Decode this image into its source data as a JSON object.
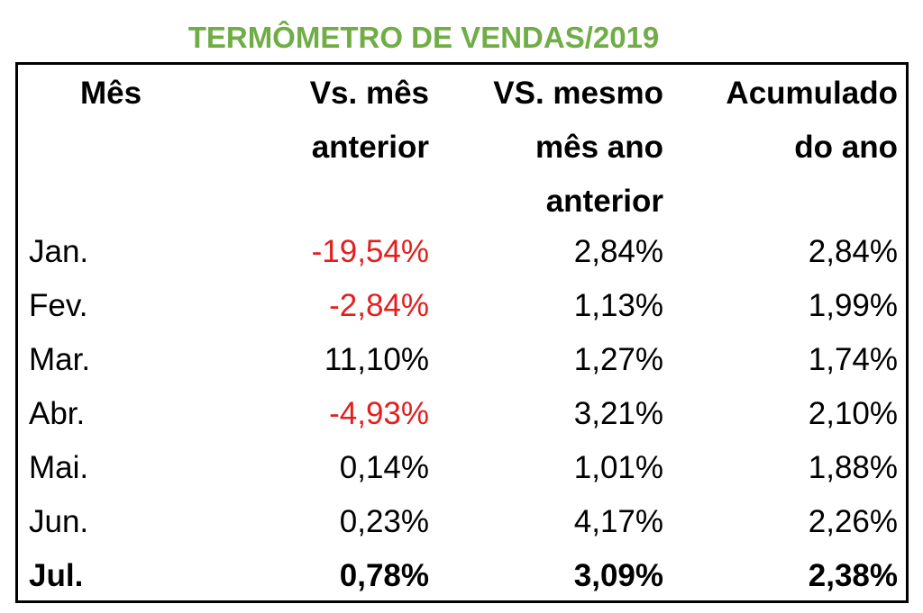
{
  "chart_data": {
    "type": "table",
    "title": "TERMÔMETRO DE VENDAS/2019",
    "columns": [
      [
        "Mês"
      ],
      [
        "Vs. mês",
        "anterior"
      ],
      [
        "VS. mesmo",
        "mês ano",
        "anterior"
      ],
      [
        "Acumulado",
        "do ano"
      ]
    ],
    "rows": [
      {
        "month": "Jan.",
        "vs_prev": "-19,54%",
        "vs_last_year": "2,84%",
        "ytd": "2,84%",
        "prev_negative": true,
        "bold": false
      },
      {
        "month": "Fev.",
        "vs_prev": "-2,84%",
        "vs_last_year": "1,13%",
        "ytd": "1,99%",
        "prev_negative": true,
        "bold": false
      },
      {
        "month": "Mar.",
        "vs_prev": "11,10%",
        "vs_last_year": "1,27%",
        "ytd": "1,74%",
        "prev_negative": false,
        "bold": false
      },
      {
        "month": "Abr.",
        "vs_prev": "-4,93%",
        "vs_last_year": "3,21%",
        "ytd": "2,10%",
        "prev_negative": true,
        "bold": false
      },
      {
        "month": "Mai.",
        "vs_prev": "0,14%",
        "vs_last_year": "1,01%",
        "ytd": "1,88%",
        "prev_negative": false,
        "bold": false
      },
      {
        "month": "Jun.",
        "vs_prev": "0,23%",
        "vs_last_year": "4,17%",
        "ytd": "2,26%",
        "prev_negative": false,
        "bold": false
      },
      {
        "month": "Jul.",
        "vs_prev": "0,78%",
        "vs_last_year": "3,09%",
        "ytd": "2,38%",
        "prev_negative": false,
        "bold": true
      }
    ],
    "colors": {
      "title": "#70ad47",
      "negative": "#e41e1e",
      "text": "#000000",
      "border": "#000000"
    }
  }
}
